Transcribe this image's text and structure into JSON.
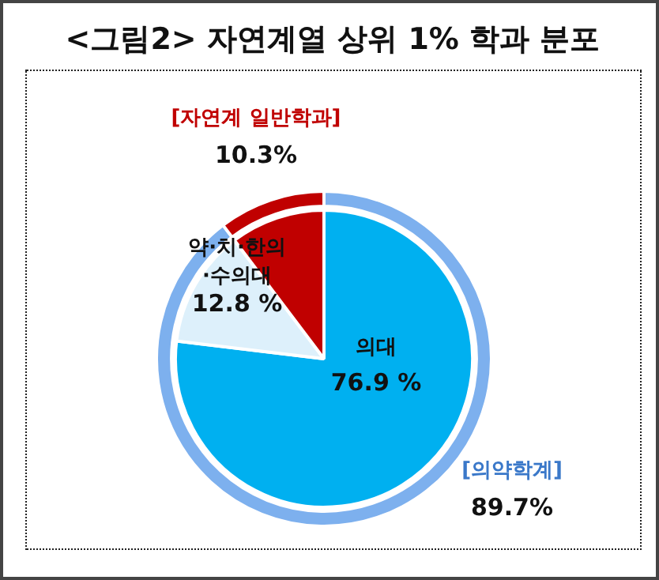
{
  "chart_data": [
    {
      "type": "pie",
      "title": "<그림2> 자연계열 상위 1% 학과 분포",
      "categories": [
        "의대",
        "약·치·한의·수의대",
        "[자연계 일반학과]"
      ],
      "values": [
        76.9,
        12.8,
        10.3
      ],
      "colors": [
        "#00b0f0",
        "#ddf0fb",
        "#c00000"
      ],
      "value_labels": [
        "76.9 %",
        "12.8 %",
        "10.3%"
      ]
    },
    {
      "type": "donut",
      "categories": [
        "[의약학계]",
        null
      ],
      "values": [
        89.7,
        10.3
      ],
      "colors": [
        "#7db0ee",
        "#c00000"
      ],
      "value_labels": [
        "89.7%",
        null
      ]
    }
  ]
}
